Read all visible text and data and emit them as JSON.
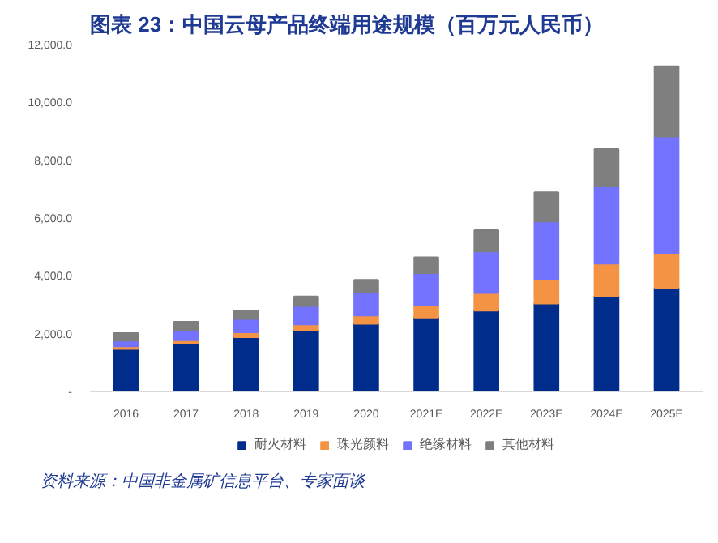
{
  "chart_data": {
    "type": "bar",
    "stacked": true,
    "title": "图表 23：中国云母产品终端用途规模（百万元人民币）",
    "annotations": [
      "资料来源：中国非金属矿信息平台、专家面谈"
    ],
    "categories": [
      "2016",
      "2017",
      "2018",
      "2019",
      "2020",
      "2021E",
      "2022E",
      "2023E",
      "2024E",
      "2025E"
    ],
    "series": [
      {
        "name": "耐火材料",
        "color": "#002d8c",
        "values": [
          1470,
          1660,
          1880,
          2120,
          2340,
          2560,
          2800,
          3040,
          3300,
          3590
        ]
      },
      {
        "name": "珠光颜料",
        "color": "#f59345",
        "values": [
          90,
          110,
          170,
          200,
          290,
          420,
          610,
          830,
          1120,
          1180
        ]
      },
      {
        "name": "绝缘材料",
        "color": "#7373ff",
        "values": [
          200,
          350,
          460,
          640,
          810,
          1110,
          1430,
          2010,
          2670,
          4050
        ]
      },
      {
        "name": "其他材料",
        "color": "#7f7f7f",
        "values": [
          260,
          290,
          280,
          330,
          420,
          550,
          740,
          1010,
          1290,
          2430
        ]
      }
    ],
    "ylim": [
      0,
      12000
    ],
    "yticks": [
      {
        "value": 0,
        "label": "-"
      },
      {
        "value": 2000,
        "label": "2,000.0"
      },
      {
        "value": 4000,
        "label": "4,000.0"
      },
      {
        "value": 6000,
        "label": "6,000.0"
      },
      {
        "value": 8000,
        "label": "8,000.0"
      },
      {
        "value": 10000,
        "label": "10,000.0"
      },
      {
        "value": 12000,
        "label": "12,000.0"
      }
    ],
    "grid": false,
    "legend": "bottom"
  }
}
